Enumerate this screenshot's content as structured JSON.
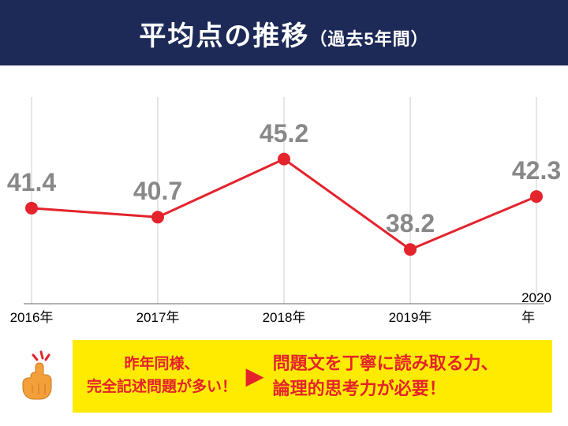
{
  "header": {
    "title_main": "平均点の推移",
    "title_sub": "（過去5年間）",
    "bg_color": "#1d2a57",
    "text_color": "#ffffff"
  },
  "chart": {
    "type": "line",
    "categories": [
      "2016年",
      "2017年",
      "2018年",
      "2019年",
      "2020年"
    ],
    "values": [
      41.4,
      40.7,
      45.2,
      38.2,
      42.3
    ],
    "value_labels": [
      "41.4",
      "40.7",
      "45.2",
      "38.2",
      "42.3"
    ],
    "ylim": [
      34,
      50
    ],
    "line_color": "#e4232c",
    "line_width": 3,
    "marker_color": "#e4232c",
    "marker_radius": 8,
    "grid_color": "#cccccc",
    "grid_width": 1,
    "baseline_color": "#666666",
    "label_color": "#888888",
    "label_fontsize": 32,
    "xlabel_color": "#000000",
    "xlabel_fontsize": 17
  },
  "callout": {
    "bg_color": "#ffeb00",
    "left_text": "昨年同様、\n完全記述問題が多い！",
    "left_color": "#e4232c",
    "right_text": "問題文を丁寧に読み取る力、\n論理的思考力が必要！",
    "right_color": "#e4232c"
  },
  "icon": {
    "name": "pointing-hand",
    "skin": "#f4a03a",
    "accent": "#e4232c"
  }
}
